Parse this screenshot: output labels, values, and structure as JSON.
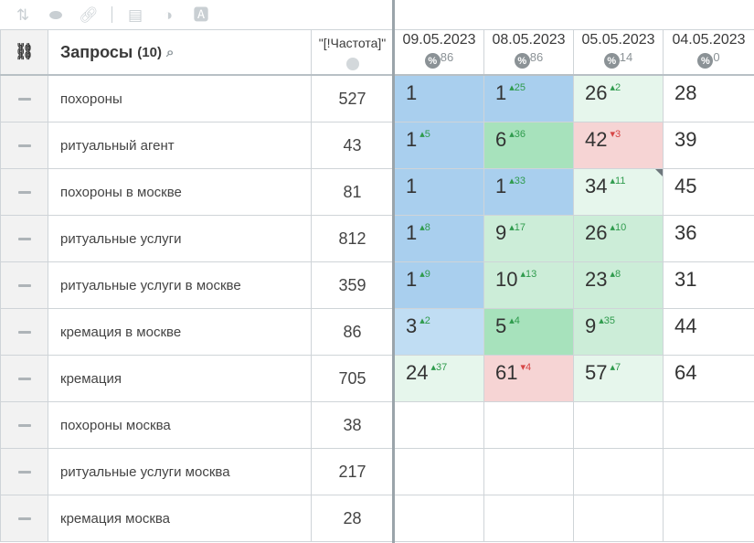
{
  "header": {
    "query_title": "Запросы",
    "query_count": "(10)",
    "freq_label": "\"[!Частота]\""
  },
  "dates": [
    {
      "label": "09.05.2023",
      "pct": "86"
    },
    {
      "label": "08.05.2023",
      "pct": "86"
    },
    {
      "label": "05.05.2023",
      "pct": "14"
    },
    {
      "label": "04.05.2023",
      "pct": "0"
    }
  ],
  "rows": [
    {
      "query": "похороны",
      "freq": "527",
      "cells": [
        {
          "v": "1",
          "d": "",
          "dir": ""
        },
        {
          "v": "1",
          "d": "25",
          "dir": "up"
        },
        {
          "v": "26",
          "d": "2",
          "dir": "up"
        },
        {
          "v": "28",
          "d": "",
          "dir": ""
        }
      ]
    },
    {
      "query": "ритуальный агент",
      "freq": "43",
      "cells": [
        {
          "v": "1",
          "d": "5",
          "dir": "up"
        },
        {
          "v": "6",
          "d": "36",
          "dir": "up"
        },
        {
          "v": "42",
          "d": "3",
          "dir": "down"
        },
        {
          "v": "39",
          "d": "",
          "dir": ""
        }
      ]
    },
    {
      "query": "похороны в москве",
      "freq": "81",
      "cells": [
        {
          "v": "1",
          "d": "",
          "dir": ""
        },
        {
          "v": "1",
          "d": "33",
          "dir": "up"
        },
        {
          "v": "34",
          "d": "11",
          "dir": "up"
        },
        {
          "v": "45",
          "d": "",
          "dir": ""
        }
      ]
    },
    {
      "query": "ритуальные услуги",
      "freq": "812",
      "cells": [
        {
          "v": "1",
          "d": "8",
          "dir": "up"
        },
        {
          "v": "9",
          "d": "17",
          "dir": "up"
        },
        {
          "v": "26",
          "d": "10",
          "dir": "up"
        },
        {
          "v": "36",
          "d": "",
          "dir": ""
        }
      ]
    },
    {
      "query": "ритуальные услуги в москве",
      "freq": "359",
      "cells": [
        {
          "v": "1",
          "d": "9",
          "dir": "up"
        },
        {
          "v": "10",
          "d": "13",
          "dir": "up"
        },
        {
          "v": "23",
          "d": "8",
          "dir": "up"
        },
        {
          "v": "31",
          "d": "",
          "dir": ""
        }
      ]
    },
    {
      "query": "кремация в москве",
      "freq": "86",
      "cells": [
        {
          "v": "3",
          "d": "2",
          "dir": "up"
        },
        {
          "v": "5",
          "d": "4",
          "dir": "up"
        },
        {
          "v": "9",
          "d": "35",
          "dir": "up"
        },
        {
          "v": "44",
          "d": "",
          "dir": ""
        }
      ]
    },
    {
      "query": "кремация",
      "freq": "705",
      "cells": [
        {
          "v": "24",
          "d": "37",
          "dir": "up"
        },
        {
          "v": "61",
          "d": "4",
          "dir": "down"
        },
        {
          "v": "57",
          "d": "7",
          "dir": "up"
        },
        {
          "v": "64",
          "d": "",
          "dir": ""
        }
      ]
    },
    {
      "query": "похороны москва",
      "freq": "38",
      "cells": []
    },
    {
      "query": "ритуальные услуги москва",
      "freq": "217",
      "cells": []
    },
    {
      "query": "кремация москва",
      "freq": "28",
      "cells": []
    }
  ]
}
